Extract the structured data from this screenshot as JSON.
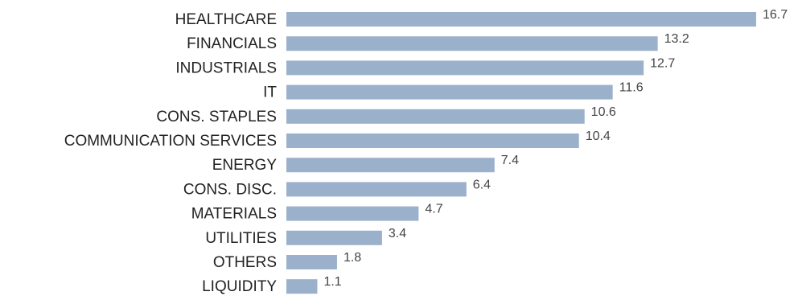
{
  "chart_data": {
    "type": "bar",
    "orientation": "horizontal",
    "categories": [
      "HEALTHCARE",
      "FINANCIALS",
      "INDUSTRIALS",
      "IT",
      "CONS. STAPLES",
      "COMMUNICATION SERVICES",
      "ENERGY",
      "CONS. DISC.",
      "MATERIALS",
      "UTILITIES",
      "OTHERS",
      "LIQUIDITY"
    ],
    "values": [
      16.7,
      13.2,
      12.7,
      11.6,
      10.6,
      10.4,
      7.4,
      6.4,
      4.7,
      3.4,
      1.8,
      1.1
    ],
    "value_labels": [
      "16.7",
      "13.2",
      "12.7",
      "11.6",
      "10.6",
      "10.4",
      "7.4",
      "6.4",
      "4.7",
      "3.4",
      "1.8",
      "1.1"
    ],
    "title": "",
    "xlabel": "",
    "ylabel": "",
    "xlim": [
      0,
      16.7
    ],
    "grid": false,
    "legend": "none",
    "bar_color": "#9ab0cb"
  }
}
